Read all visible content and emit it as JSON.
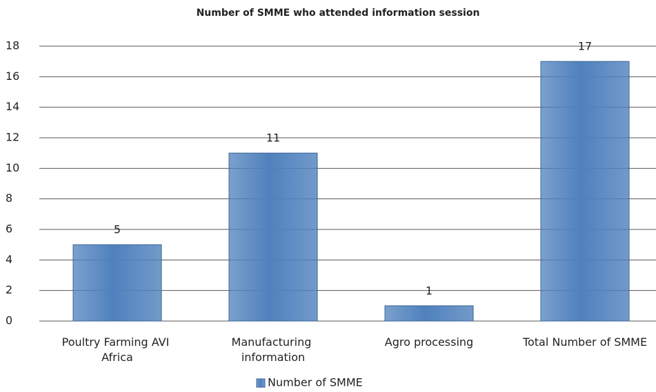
{
  "chart_data": {
    "type": "bar",
    "title": "Number of SMME who attended information session",
    "categories": [
      "Poultry Farming AVI Africa",
      "Manufacturing information",
      "Agro processing",
      "Total Number of SMME"
    ],
    "series": [
      {
        "name": "Number of SMME",
        "color": "#4f81bd",
        "values": [
          5,
          11,
          1,
          17
        ]
      }
    ],
    "ylim": [
      0,
      18
    ],
    "yticks": [
      0,
      2,
      4,
      6,
      8,
      10,
      12,
      14,
      16,
      18
    ],
    "grid": true,
    "legend": "bottom",
    "data_labels": true
  }
}
